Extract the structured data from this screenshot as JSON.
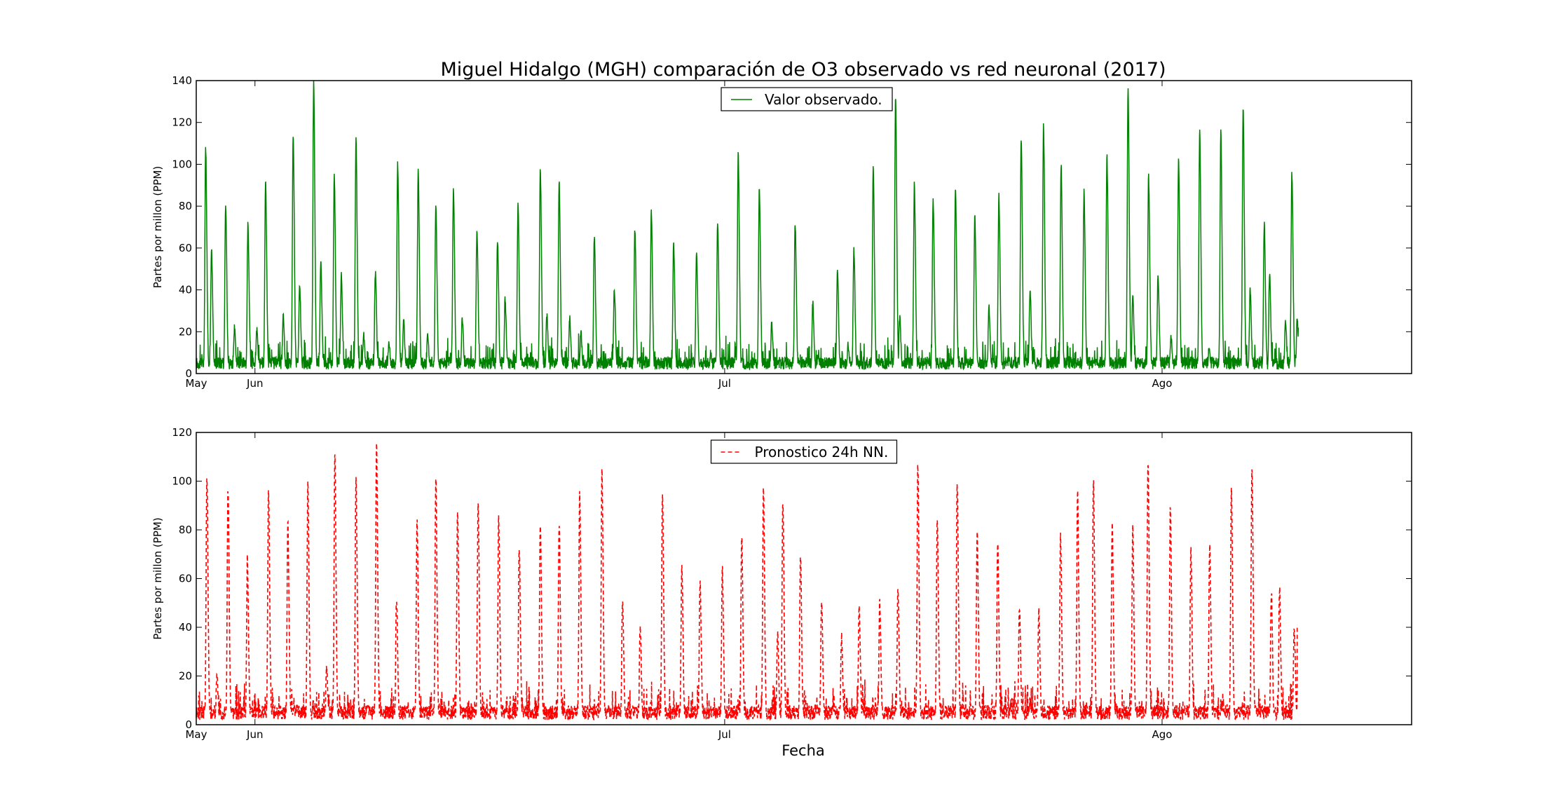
{
  "figure": {
    "title": "Miguel Hidalgo (MGH) comparación de O3 observado vs red neuronal (2017)",
    "xlabel": "Fecha"
  },
  "chart_data": [
    {
      "type": "line",
      "ylabel": "Partes por millon (PPM)",
      "xlabel": "",
      "ylim": [
        0,
        140
      ],
      "yticks": [
        0,
        20,
        40,
        60,
        80,
        100,
        120,
        140
      ],
      "x_unit": "days since May 1 2017 (date axis)",
      "xlim_days": [
        0,
        207
      ],
      "xticks": [
        {
          "day": 0,
          "label": "May"
        },
        {
          "day": 10,
          "label": "Jun"
        },
        {
          "day": 90,
          "label": "Jul"
        },
        {
          "day": 164.5,
          "label": "Ago"
        }
      ],
      "legend_position": "top-center",
      "grid": false,
      "series": [
        {
          "name": "Valor observado.",
          "color": "#008000",
          "style": "solid",
          "daily_peaks": [
            {
              "day": 1.6,
              "value": 108
            },
            {
              "day": 2.6,
              "value": 59
            },
            {
              "day": 5.0,
              "value": 80
            },
            {
              "day": 6.5,
              "value": 22
            },
            {
              "day": 8.8,
              "value": 71
            },
            {
              "day": 10.3,
              "value": 21
            },
            {
              "day": 11.8,
              "value": 92
            },
            {
              "day": 14.8,
              "value": 27
            },
            {
              "day": 16.5,
              "value": 113
            },
            {
              "day": 17.6,
              "value": 43
            },
            {
              "day": 20.0,
              "value": 139
            },
            {
              "day": 21.2,
              "value": 53
            },
            {
              "day": 23.5,
              "value": 95
            },
            {
              "day": 24.7,
              "value": 47
            },
            {
              "day": 27.2,
              "value": 112
            },
            {
              "day": 28.5,
              "value": 19
            },
            {
              "day": 30.5,
              "value": 48
            },
            {
              "day": 32.8,
              "value": 14
            },
            {
              "day": 34.3,
              "value": 100
            },
            {
              "day": 35.3,
              "value": 26
            },
            {
              "day": 37.8,
              "value": 97
            },
            {
              "day": 39.4,
              "value": 18
            },
            {
              "day": 40.8,
              "value": 81
            },
            {
              "day": 43.8,
              "value": 88
            },
            {
              "day": 45.3,
              "value": 27
            },
            {
              "day": 47.8,
              "value": 68
            },
            {
              "day": 51.3,
              "value": 63
            },
            {
              "day": 52.6,
              "value": 36
            },
            {
              "day": 54.8,
              "value": 80
            },
            {
              "day": 58.6,
              "value": 98
            },
            {
              "day": 59.7,
              "value": 28
            },
            {
              "day": 61.8,
              "value": 91
            },
            {
              "day": 63.6,
              "value": 26
            },
            {
              "day": 65.5,
              "value": 20
            },
            {
              "day": 67.8,
              "value": 65
            },
            {
              "day": 71.2,
              "value": 40
            },
            {
              "day": 74.7,
              "value": 69
            },
            {
              "day": 77.5,
              "value": 77
            },
            {
              "day": 81.3,
              "value": 62
            },
            {
              "day": 85.2,
              "value": 58
            },
            {
              "day": 87.6,
              "value": 10
            },
            {
              "day": 88.8,
              "value": 72
            },
            {
              "day": 92.3,
              "value": 105
            },
            {
              "day": 95.9,
              "value": 89
            },
            {
              "day": 98.0,
              "value": 25
            },
            {
              "day": 102.0,
              "value": 72
            },
            {
              "day": 105.0,
              "value": 34
            },
            {
              "day": 109.2,
              "value": 48
            },
            {
              "day": 111.0,
              "value": 14
            },
            {
              "day": 112.0,
              "value": 59
            },
            {
              "day": 115.3,
              "value": 98
            },
            {
              "day": 119.1,
              "value": 133
            },
            {
              "day": 119.8,
              "value": 27
            },
            {
              "day": 122.3,
              "value": 90
            },
            {
              "day": 125.5,
              "value": 83
            },
            {
              "day": 129.3,
              "value": 90
            },
            {
              "day": 132.6,
              "value": 76
            },
            {
              "day": 135.0,
              "value": 32
            },
            {
              "day": 136.7,
              "value": 85
            },
            {
              "day": 140.5,
              "value": 112
            },
            {
              "day": 142.0,
              "value": 40
            },
            {
              "day": 144.3,
              "value": 119
            },
            {
              "day": 147.3,
              "value": 100
            },
            {
              "day": 151.2,
              "value": 87
            },
            {
              "day": 155.1,
              "value": 104
            },
            {
              "day": 158.7,
              "value": 136
            },
            {
              "day": 159.5,
              "value": 39
            },
            {
              "day": 162.2,
              "value": 94
            },
            {
              "day": 163.8,
              "value": 48
            },
            {
              "day": 166.0,
              "value": 18
            },
            {
              "day": 167.3,
              "value": 102
            },
            {
              "day": 170.9,
              "value": 115
            },
            {
              "day": 172.5,
              "value": 13
            },
            {
              "day": 174.5,
              "value": 115
            },
            {
              "day": 178.3,
              "value": 127
            },
            {
              "day": 179.5,
              "value": 40
            },
            {
              "day": 181.9,
              "value": 71
            },
            {
              "day": 182.8,
              "value": 48
            },
            {
              "day": 185.5,
              "value": 26
            },
            {
              "day": 186.6,
              "value": 96
            },
            {
              "day": 187.5,
              "value": 26
            }
          ],
          "last_value": 22,
          "last_day": 187.7
        }
      ]
    },
    {
      "type": "line",
      "ylabel": "Partes por millon (PPM)",
      "xlabel": "Fecha",
      "ylim": [
        0,
        120
      ],
      "yticks": [
        0,
        20,
        40,
        60,
        80,
        100,
        120
      ],
      "x_unit": "days since May 1 2017 (date axis)",
      "xlim_days": [
        0,
        207
      ],
      "xticks": [
        {
          "day": 0,
          "label": "May"
        },
        {
          "day": 10,
          "label": "Jun"
        },
        {
          "day": 90,
          "label": "Jul"
        },
        {
          "day": 164.5,
          "label": "Ago"
        }
      ],
      "legend_position": "top-center",
      "grid": false,
      "series": [
        {
          "name": "Pronostico 24h NN.",
          "color": "#ff0000",
          "style": "dashed",
          "daily_peaks": [
            {
              "day": 1.8,
              "value": 102
            },
            {
              "day": 3.5,
              "value": 20
            },
            {
              "day": 5.4,
              "value": 97
            },
            {
              "day": 8.7,
              "value": 68
            },
            {
              "day": 12.3,
              "value": 96
            },
            {
              "day": 15.6,
              "value": 83
            },
            {
              "day": 19.0,
              "value": 98
            },
            {
              "day": 22.2,
              "value": 23
            },
            {
              "day": 23.6,
              "value": 110
            },
            {
              "day": 27.2,
              "value": 100
            },
            {
              "day": 30.7,
              "value": 115
            },
            {
              "day": 34.1,
              "value": 52
            },
            {
              "day": 37.6,
              "value": 84
            },
            {
              "day": 40.8,
              "value": 101
            },
            {
              "day": 44.5,
              "value": 88
            },
            {
              "day": 48.0,
              "value": 91
            },
            {
              "day": 51.5,
              "value": 85
            },
            {
              "day": 55.0,
              "value": 73
            },
            {
              "day": 58.6,
              "value": 83
            },
            {
              "day": 61.8,
              "value": 82
            },
            {
              "day": 65.3,
              "value": 95
            },
            {
              "day": 69.1,
              "value": 105
            },
            {
              "day": 72.6,
              "value": 51
            },
            {
              "day": 75.6,
              "value": 40
            },
            {
              "day": 79.4,
              "value": 95
            },
            {
              "day": 82.7,
              "value": 65
            },
            {
              "day": 85.8,
              "value": 59
            },
            {
              "day": 89.6,
              "value": 64
            },
            {
              "day": 92.9,
              "value": 77
            },
            {
              "day": 96.6,
              "value": 96
            },
            {
              "day": 99.0,
              "value": 38
            },
            {
              "day": 99.9,
              "value": 92
            },
            {
              "day": 102.9,
              "value": 69
            },
            {
              "day": 106.5,
              "value": 52
            },
            {
              "day": 109.9,
              "value": 36
            },
            {
              "day": 112.9,
              "value": 48
            },
            {
              "day": 116.4,
              "value": 50
            },
            {
              "day": 119.5,
              "value": 57
            },
            {
              "day": 122.9,
              "value": 107
            },
            {
              "day": 126.2,
              "value": 86
            },
            {
              "day": 129.6,
              "value": 98
            },
            {
              "day": 133.0,
              "value": 79
            },
            {
              "day": 136.5,
              "value": 75
            },
            {
              "day": 140.2,
              "value": 49
            },
            {
              "day": 143.5,
              "value": 47
            },
            {
              "day": 147.2,
              "value": 77
            },
            {
              "day": 150.1,
              "value": 95
            },
            {
              "day": 152.8,
              "value": 100
            },
            {
              "day": 156.0,
              "value": 82
            },
            {
              "day": 159.5,
              "value": 81
            },
            {
              "day": 162.1,
              "value": 109
            },
            {
              "day": 165.9,
              "value": 89
            },
            {
              "day": 169.4,
              "value": 72
            },
            {
              "day": 172.6,
              "value": 74
            },
            {
              "day": 176.3,
              "value": 96
            },
            {
              "day": 179.8,
              "value": 107
            },
            {
              "day": 183.1,
              "value": 55
            },
            {
              "day": 184.5,
              "value": 56
            },
            {
              "day": 187.0,
              "value": 40
            }
          ],
          "last_value": 41,
          "last_day": 187.5
        }
      ]
    }
  ]
}
